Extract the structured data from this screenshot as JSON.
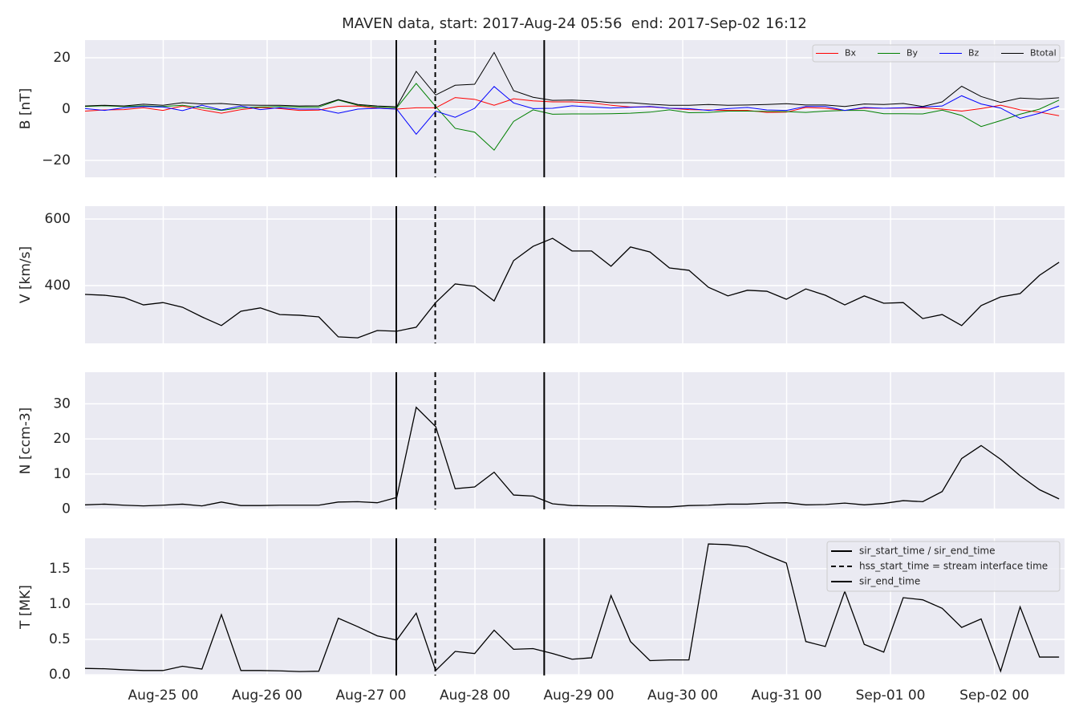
{
  "chart_data": {
    "type": "line",
    "title": "MAVEN data, start: 2017-Aug-24 05:56  end: 2017-Sep-02 16:12",
    "x": [
      "2017-08-24 05:56",
      "2017-08-24 10:26",
      "2017-08-24 14:56",
      "2017-08-24 19:26",
      "2017-08-24 23:56",
      "2017-08-25 04:26",
      "2017-08-25 08:56",
      "2017-08-25 13:26",
      "2017-08-25 17:56",
      "2017-08-25 22:26",
      "2017-08-26 02:56",
      "2017-08-26 07:26",
      "2017-08-26 11:56",
      "2017-08-26 16:26",
      "2017-08-26 20:56",
      "2017-08-27 01:26",
      "2017-08-27 05:56",
      "2017-08-27 10:26",
      "2017-08-27 14:56",
      "2017-08-27 19:26",
      "2017-08-27 23:56",
      "2017-08-28 04:26",
      "2017-08-28 08:56",
      "2017-08-28 13:26",
      "2017-08-28 17:56",
      "2017-08-28 22:26",
      "2017-08-29 02:56",
      "2017-08-29 07:26",
      "2017-08-29 11:56",
      "2017-08-29 16:26",
      "2017-08-29 20:56",
      "2017-08-30 01:26",
      "2017-08-30 05:56",
      "2017-08-30 10:26",
      "2017-08-30 14:56",
      "2017-08-30 19:26",
      "2017-08-30 23:56",
      "2017-08-31 04:26",
      "2017-08-31 08:56",
      "2017-08-31 13:26",
      "2017-08-31 17:56",
      "2017-08-31 22:26",
      "2017-09-01 02:56",
      "2017-09-01 07:26",
      "2017-09-01 11:56",
      "2017-09-01 16:26",
      "2017-09-01 20:56",
      "2017-09-02 01:26",
      "2017-09-02 05:56",
      "2017-09-02 10:26",
      "2017-09-02 14:56"
    ],
    "xlim": [
      "2017-08-24 05:56",
      "2017-09-02 16:12"
    ],
    "xticks": [
      {
        "value": "2017-08-25 00:00",
        "label": "Aug-25 00"
      },
      {
        "value": "2017-08-26 00:00",
        "label": "Aug-26 00"
      },
      {
        "value": "2017-08-27 00:00",
        "label": "Aug-27 00"
      },
      {
        "value": "2017-08-28 00:00",
        "label": "Aug-28 00"
      },
      {
        "value": "2017-08-29 00:00",
        "label": "Aug-29 00"
      },
      {
        "value": "2017-08-30 00:00",
        "label": "Aug-30 00"
      },
      {
        "value": "2017-08-31 00:00",
        "label": "Aug-31 00"
      },
      {
        "value": "2017-09-01 00:00",
        "label": "Sep-01 00"
      },
      {
        "value": "2017-09-02 00:00",
        "label": "Sep-02 00"
      }
    ],
    "grid": true,
    "vlines": [
      {
        "name": "sir_start_time / sir_end_time",
        "x": "2017-08-27 05:50",
        "style": "solid",
        "color": "#000000"
      },
      {
        "name": "hss_start_time = stream interface time",
        "x": "2017-08-27 14:50",
        "style": "dashed",
        "color": "#000000"
      },
      {
        "name": "sir_end_time",
        "x": "2017-08-28 16:00",
        "style": "solid",
        "color": "#000000"
      }
    ],
    "panels": [
      {
        "ylabel": "B [nT]",
        "ylim": [
          -26.6,
          26.9
        ],
        "yticks": [
          {
            "value": -20,
            "label": "−20"
          },
          0,
          20
        ],
        "legend": "upper right",
        "series": [
          {
            "name": "Bx",
            "color": "#ff0000",
            "values": [
              -0.8,
              -0.3,
              -0.2,
              0.5,
              -0.5,
              1.2,
              -0.3,
              -1.6,
              -0.2,
              0.6,
              0.2,
              -0.5,
              -0.4,
              1.1,
              1.2,
              0.4,
              0,
              0.5,
              0.5,
              4.5,
              3.8,
              1.5,
              4,
              3.2,
              2.8,
              2.8,
              2.4,
              1.5,
              0.8,
              0.9,
              0.3,
              -0.2,
              -0.3,
              -0.5,
              -0.5,
              -1.3,
              -1.2,
              0.6,
              0.3,
              -0.5,
              0.4,
              0.3,
              0.4,
              0.5,
              0,
              -0.8,
              0.2,
              1.5,
              -0.3,
              -1.2,
              -2.6
            ]
          },
          {
            "name": "By",
            "color": "#008000",
            "values": [
              1,
              1.3,
              1,
              1.3,
              1,
              1.5,
              0.5,
              -0.5,
              0.5,
              0.8,
              1,
              0.8,
              0.8,
              3.5,
              1.5,
              0.8,
              0.5,
              10,
              1,
              -7.5,
              -9,
              -16,
              -4.8,
              -0.3,
              -2,
              -1.9,
              -1.9,
              -1.8,
              -1.6,
              -1.2,
              -0.3,
              -1.4,
              -1.3,
              -0.8,
              -0.8,
              -0.9,
              -1,
              -1.3,
              -0.8,
              -0.5,
              -0.5,
              -1.8,
              -1.8,
              -1.9,
              -0.4,
              -2.5,
              -6.8,
              -4.5,
              -2,
              0,
              3.5
            ]
          },
          {
            "name": "Bz",
            "color": "#0000ff",
            "values": [
              0.2,
              -0.5,
              0.5,
              1,
              0.8,
              -0.6,
              1.5,
              -0.3,
              1.2,
              -0.2,
              0.5,
              0,
              0,
              -1.6,
              0,
              0.3,
              0,
              -9.8,
              -0.8,
              -3.2,
              0.3,
              8.8,
              2.4,
              0.2,
              0.3,
              1.3,
              0.8,
              0.4,
              0.7,
              1,
              0.3,
              0.2,
              -0.5,
              0.2,
              0.6,
              -0.3,
              -0.5,
              1,
              1,
              -0.5,
              0.6,
              0.3,
              0.5,
              0.8,
              1.2,
              5.2,
              2,
              0.4,
              -3.6,
              -1.6,
              1.2
            ]
          },
          {
            "name": "Btotal",
            "color": "#000000",
            "values": [
              1.2,
              1.5,
              1.2,
              1.9,
              1.5,
              2.5,
              2,
              2.2,
              1.6,
              1.5,
              1.5,
              1.2,
              1.3,
              3.7,
              1.8,
              1.2,
              0.9,
              14.7,
              5.5,
              9.3,
              9.7,
              22.1,
              7.2,
              4.6,
              3.4,
              3.5,
              3.2,
              2.5,
              2.5,
              1.9,
              1.5,
              1.5,
              1.8,
              1.5,
              1.6,
              1.8,
              2.1,
              1.6,
              1.6,
              1,
              2,
              1.8,
              2.2,
              1,
              2.8,
              8.9,
              4.9,
              2.6,
              4.3,
              3.9,
              4.4
            ]
          }
        ]
      },
      {
        "ylabel": "V [km/s]",
        "ylim": [
          226.5,
          638.6
        ],
        "yticks": [
          400,
          600
        ],
        "series": [
          {
            "color": "#000000",
            "values": [
              373.5,
              371,
              364,
              342,
              349,
              335,
              306,
              280,
              323,
              333,
              313,
              311,
              306,
              246,
              243,
              265,
              263,
              275,
              349,
              405,
              398,
              354,
              475,
              518,
              542,
              504,
              504,
              458,
              516,
              501,
              453,
              446,
              395,
              369,
              386,
              383,
              359,
              390,
              371,
              342,
              369,
              347,
              349,
              301,
              313,
              280,
              340,
              366,
              376,
              431,
              470
            ]
          }
        ]
      },
      {
        "ylabel": "N [ccm-3]",
        "ylim": [
          -0.1,
          39
        ],
        "yticks": [
          0,
          10,
          20,
          30
        ],
        "series": [
          {
            "color": "#000000",
            "values": [
              1.2,
              1.4,
              1.1,
              0.9,
              1.1,
              1.4,
              0.9,
              2,
              1,
              1,
              1.1,
              1.1,
              1.1,
              2,
              2.1,
              1.8,
              3.3,
              29,
              23.5,
              5.8,
              6.3,
              10.5,
              4,
              3.7,
              1.5,
              1,
              0.9,
              0.9,
              0.8,
              0.6,
              0.6,
              1,
              1.1,
              1.4,
              1.4,
              1.7,
              1.8,
              1.2,
              1.3,
              1.7,
              1.2,
              1.6,
              2.4,
              2.1,
              5,
              14.4,
              18.1,
              14.2,
              9.5,
              5.5,
              2.9
            ]
          }
        ]
      },
      {
        "ylabel": "T [MK]",
        "ylim": [
          -0.01,
          1.93
        ],
        "yticks": [
          {
            "value": 0,
            "label": "0.0"
          },
          0.5,
          {
            "value": 1,
            "label": "1.0"
          },
          1.5
        ],
        "legend": "upper right",
        "series": [
          {
            "color": "#000000",
            "values": [
              0.09,
              0.085,
              0.07,
              0.06,
              0.06,
              0.12,
              0.08,
              0.85,
              0.06,
              0.06,
              0.055,
              0.045,
              0.05,
              0.8,
              0.68,
              0.55,
              0.49,
              0.87,
              0.06,
              0.33,
              0.3,
              0.63,
              0.36,
              0.37,
              0.3,
              0.22,
              0.24,
              1.12,
              0.47,
              0.2,
              0.21,
              0.21,
              1.85,
              1.84,
              1.81,
              1.69,
              1.58,
              0.47,
              0.4,
              1.18,
              0.43,
              0.32,
              1.09,
              1.06,
              0.94,
              0.67,
              0.79,
              0.05,
              0.96,
              0.25,
              0.25
            ]
          }
        ]
      }
    ]
  }
}
